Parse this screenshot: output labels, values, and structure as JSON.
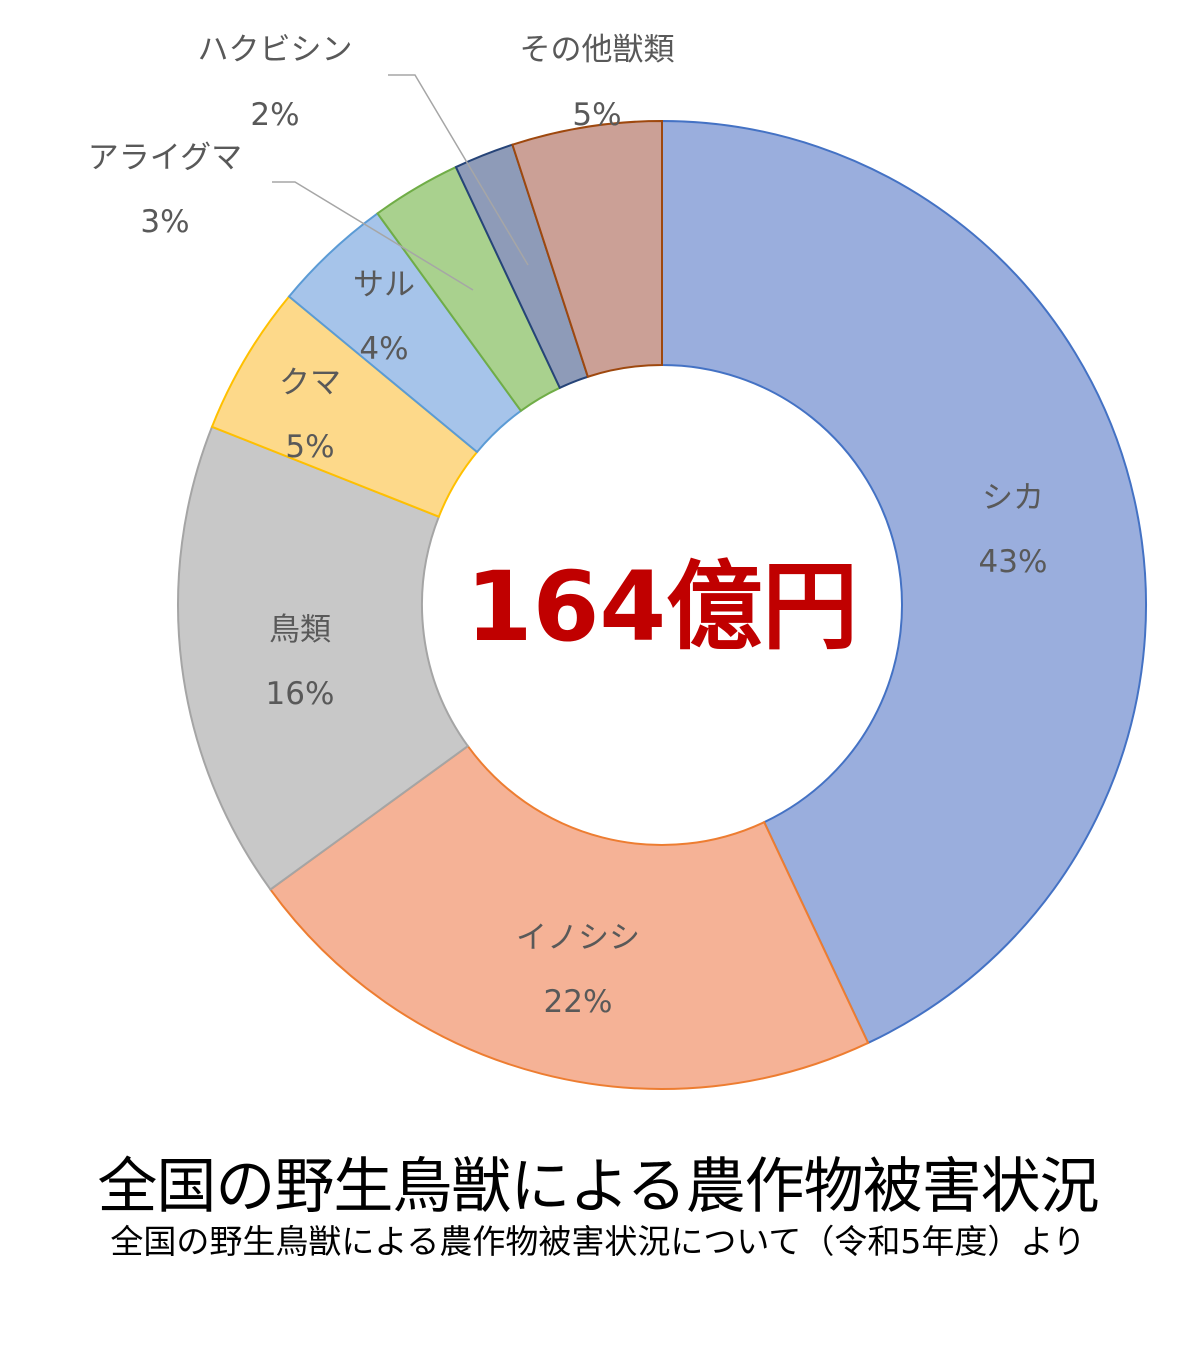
{
  "chart_data": {
    "type": "pie",
    "slices": [
      {
        "name": "シカ",
        "label": "43%",
        "value": 43,
        "fill": "#9aaedd",
        "stroke": "#4472c4"
      },
      {
        "name": "イノシシ",
        "label": "22%",
        "value": 22,
        "fill": "#f5b296",
        "stroke": "#ed7d31"
      },
      {
        "name": "鳥類",
        "label": "16%",
        "value": 16,
        "fill": "#c8c8c8",
        "stroke": "#a5a5a5"
      },
      {
        "name": "クマ",
        "label": "5%",
        "value": 5,
        "fill": "#fdd98a",
        "stroke": "#ffc000"
      },
      {
        "name": "サル",
        "label": "4%",
        "value": 4,
        "fill": "#a6c4ea",
        "stroke": "#5b9bd5"
      },
      {
        "name": "アライグマ",
        "label": "3%",
        "value": 3,
        "fill": "#a9d18e",
        "stroke": "#70ad47"
      },
      {
        "name": "ハクビシン",
        "label": "2%",
        "value": 2,
        "fill": "#8e9bb8",
        "stroke": "#264478"
      },
      {
        "name": "その他獣類",
        "label": "5%",
        "value": 5,
        "fill": "#cba096",
        "stroke": "#9e480e"
      }
    ],
    "center_text": "164億円",
    "title": "全国の野生鳥獣による農作物被害状況",
    "subtitle": "全国の野生鳥獣による農作物被害状況について（令和5年度）より"
  }
}
